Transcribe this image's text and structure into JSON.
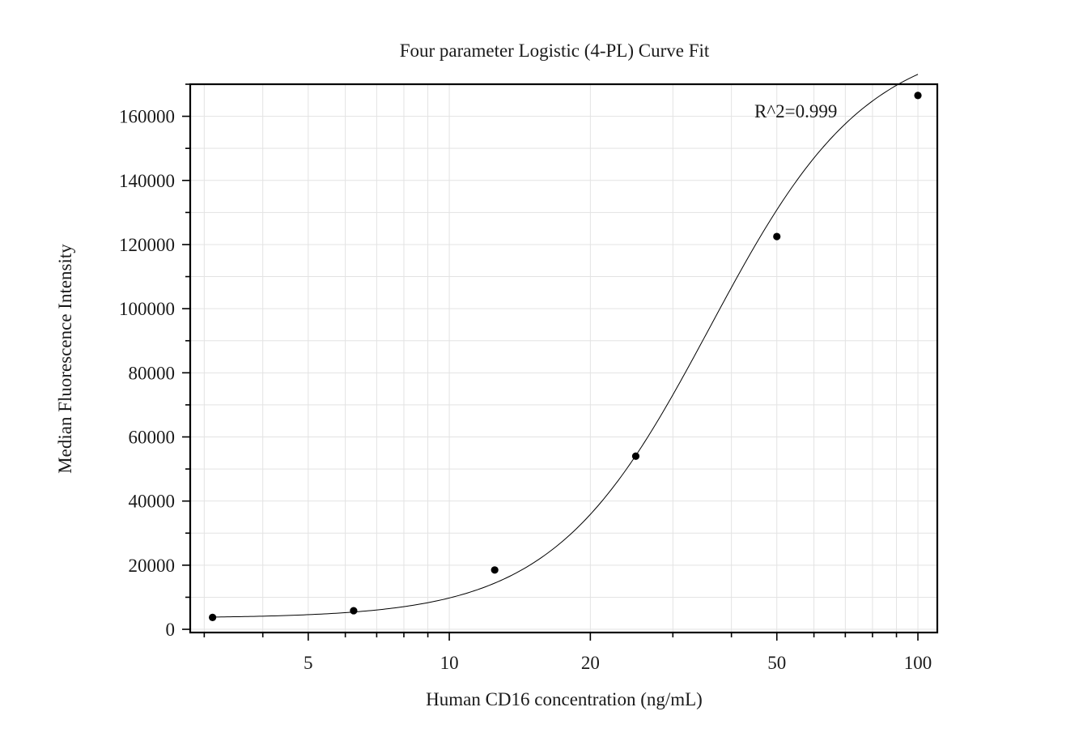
{
  "chart_data": {
    "type": "scatter",
    "title": "Four parameter Logistic (4-PL) Curve Fit",
    "xlabel": "Human CD16 concentration (ng/mL)",
    "ylabel": "Median Fluorescence Intensity",
    "x_scale": "log",
    "xlim": [
      2.8,
      110
    ],
    "ylim": [
      -1000,
      170000
    ],
    "x_ticks": [
      5,
      10,
      20,
      50,
      100
    ],
    "x_tick_labels": [
      "5",
      "10",
      "20",
      "50",
      "100"
    ],
    "y_ticks": [
      0,
      20000,
      40000,
      60000,
      80000,
      100000,
      120000,
      140000,
      160000
    ],
    "y_tick_labels": [
      "0",
      "20000",
      "40000",
      "60000",
      "80000",
      "100000",
      "120000",
      "140000",
      "160000"
    ],
    "grid": true,
    "annotation": "R^2=0.999",
    "points": {
      "x": [
        3.125,
        6.25,
        12.5,
        25,
        50,
        100
      ],
      "y": [
        3700,
        5800,
        18500,
        54000,
        122500,
        166500
      ]
    },
    "fit": {
      "model": "4PL",
      "a": 3500,
      "d": 185000,
      "c": 36,
      "b": 2.6
    },
    "colors": {
      "points": "#000000",
      "curve": "#000000",
      "grid": "#e3e3e3"
    }
  }
}
